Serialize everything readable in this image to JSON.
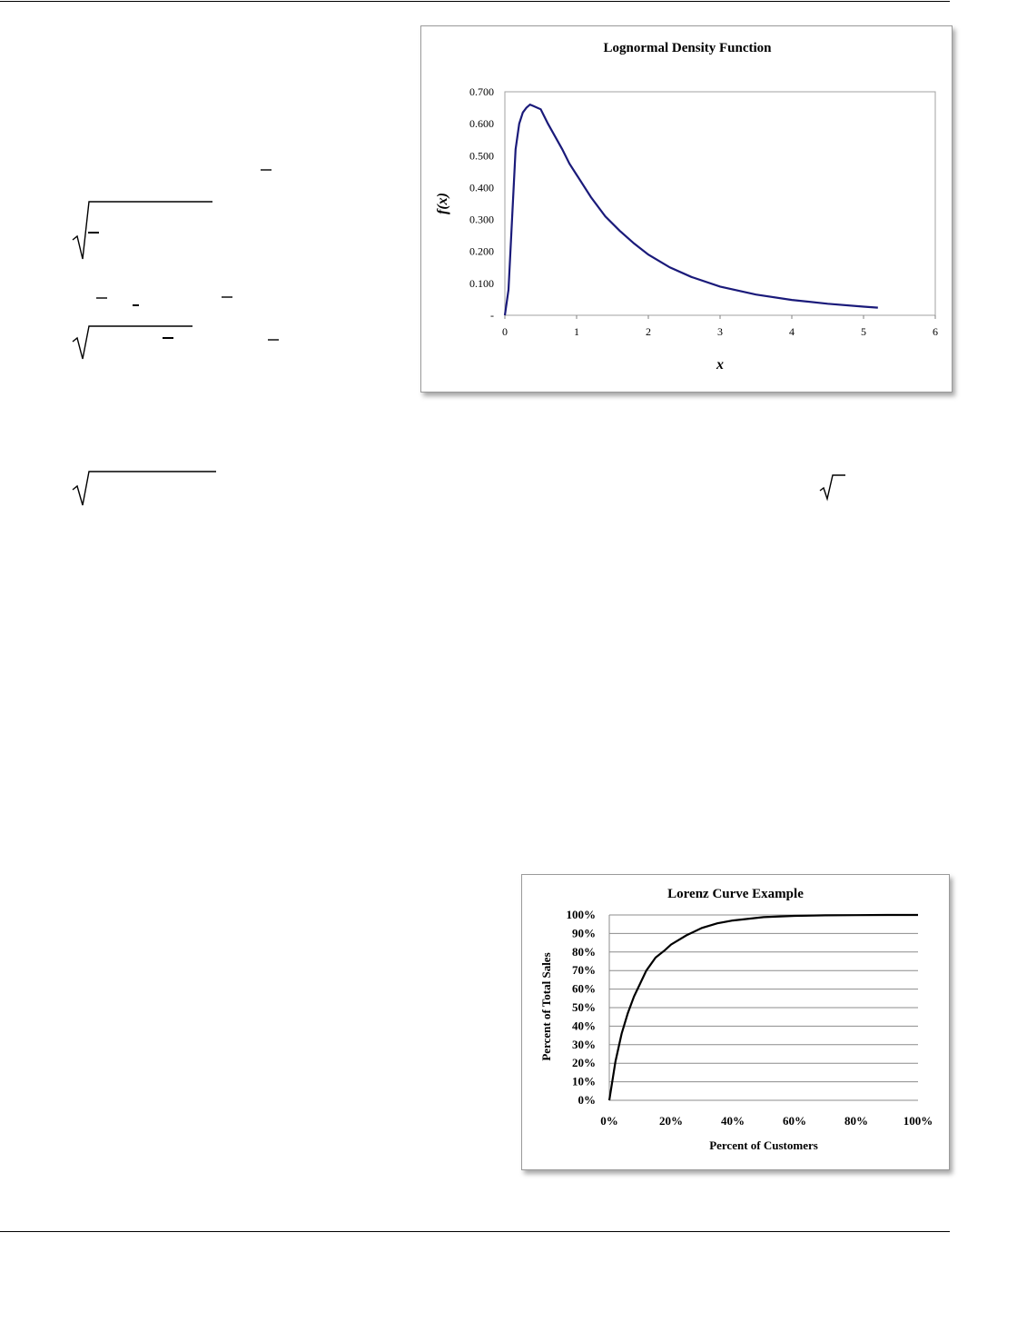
{
  "lognormal_chart": {
    "chart_data": {
      "type": "line",
      "title": "Lognormal Density Function",
      "xlabel": "x",
      "ylabel": "f(x)",
      "xlim": [
        0,
        6
      ],
      "ylim": [
        0,
        0.7
      ],
      "x_ticks": [
        "0",
        "1",
        "2",
        "3",
        "4",
        "5",
        "6"
      ],
      "y_ticks": [
        "-",
        "0.100",
        "0.200",
        "0.300",
        "0.400",
        "0.500",
        "0.600",
        "0.700"
      ],
      "grid": false,
      "series": [
        {
          "color": "#1a1a7a",
          "x": [
            0,
            0.05,
            0.1,
            0.15,
            0.2,
            0.25,
            0.3,
            0.35,
            0.4,
            0.5,
            0.6,
            0.7,
            0.8,
            0.9,
            1.0,
            1.2,
            1.4,
            1.6,
            1.8,
            2.0,
            2.3,
            2.6,
            3.0,
            3.5,
            4.0,
            4.5,
            5.0,
            5.2
          ],
          "y": [
            0,
            0.08,
            0.3,
            0.52,
            0.6,
            0.635,
            0.65,
            0.66,
            0.655,
            0.645,
            0.6,
            0.56,
            0.52,
            0.475,
            0.44,
            0.37,
            0.31,
            0.265,
            0.225,
            0.19,
            0.15,
            0.12,
            0.09,
            0.065,
            0.048,
            0.036,
            0.027,
            0.024
          ]
        }
      ]
    }
  },
  "lorenz_chart": {
    "chart_data": {
      "type": "line",
      "title": "Lorenz Curve Example",
      "xlabel": "Percent of Customers",
      "ylabel": "Percent of Total Sales",
      "xlim": [
        0,
        100
      ],
      "ylim": [
        0,
        100
      ],
      "x_ticks": [
        "0%",
        "20%",
        "40%",
        "60%",
        "80%",
        "100%"
      ],
      "y_ticks": [
        "0%",
        "10%",
        "20%",
        "30%",
        "40%",
        "50%",
        "60%",
        "70%",
        "80%",
        "90%",
        "100%"
      ],
      "grid": true,
      "series": [
        {
          "color": "#000000",
          "x": [
            0,
            2,
            4,
            6,
            8,
            10,
            12,
            15,
            18,
            20,
            25,
            30,
            35,
            40,
            50,
            60,
            70,
            80,
            90,
            100
          ],
          "y": [
            0,
            21,
            36,
            47,
            56,
            63,
            70,
            77,
            81,
            84,
            89,
            93,
            95.5,
            97,
            98.8,
            99.5,
            99.8,
            99.9,
            100,
            100
          ]
        }
      ]
    }
  }
}
